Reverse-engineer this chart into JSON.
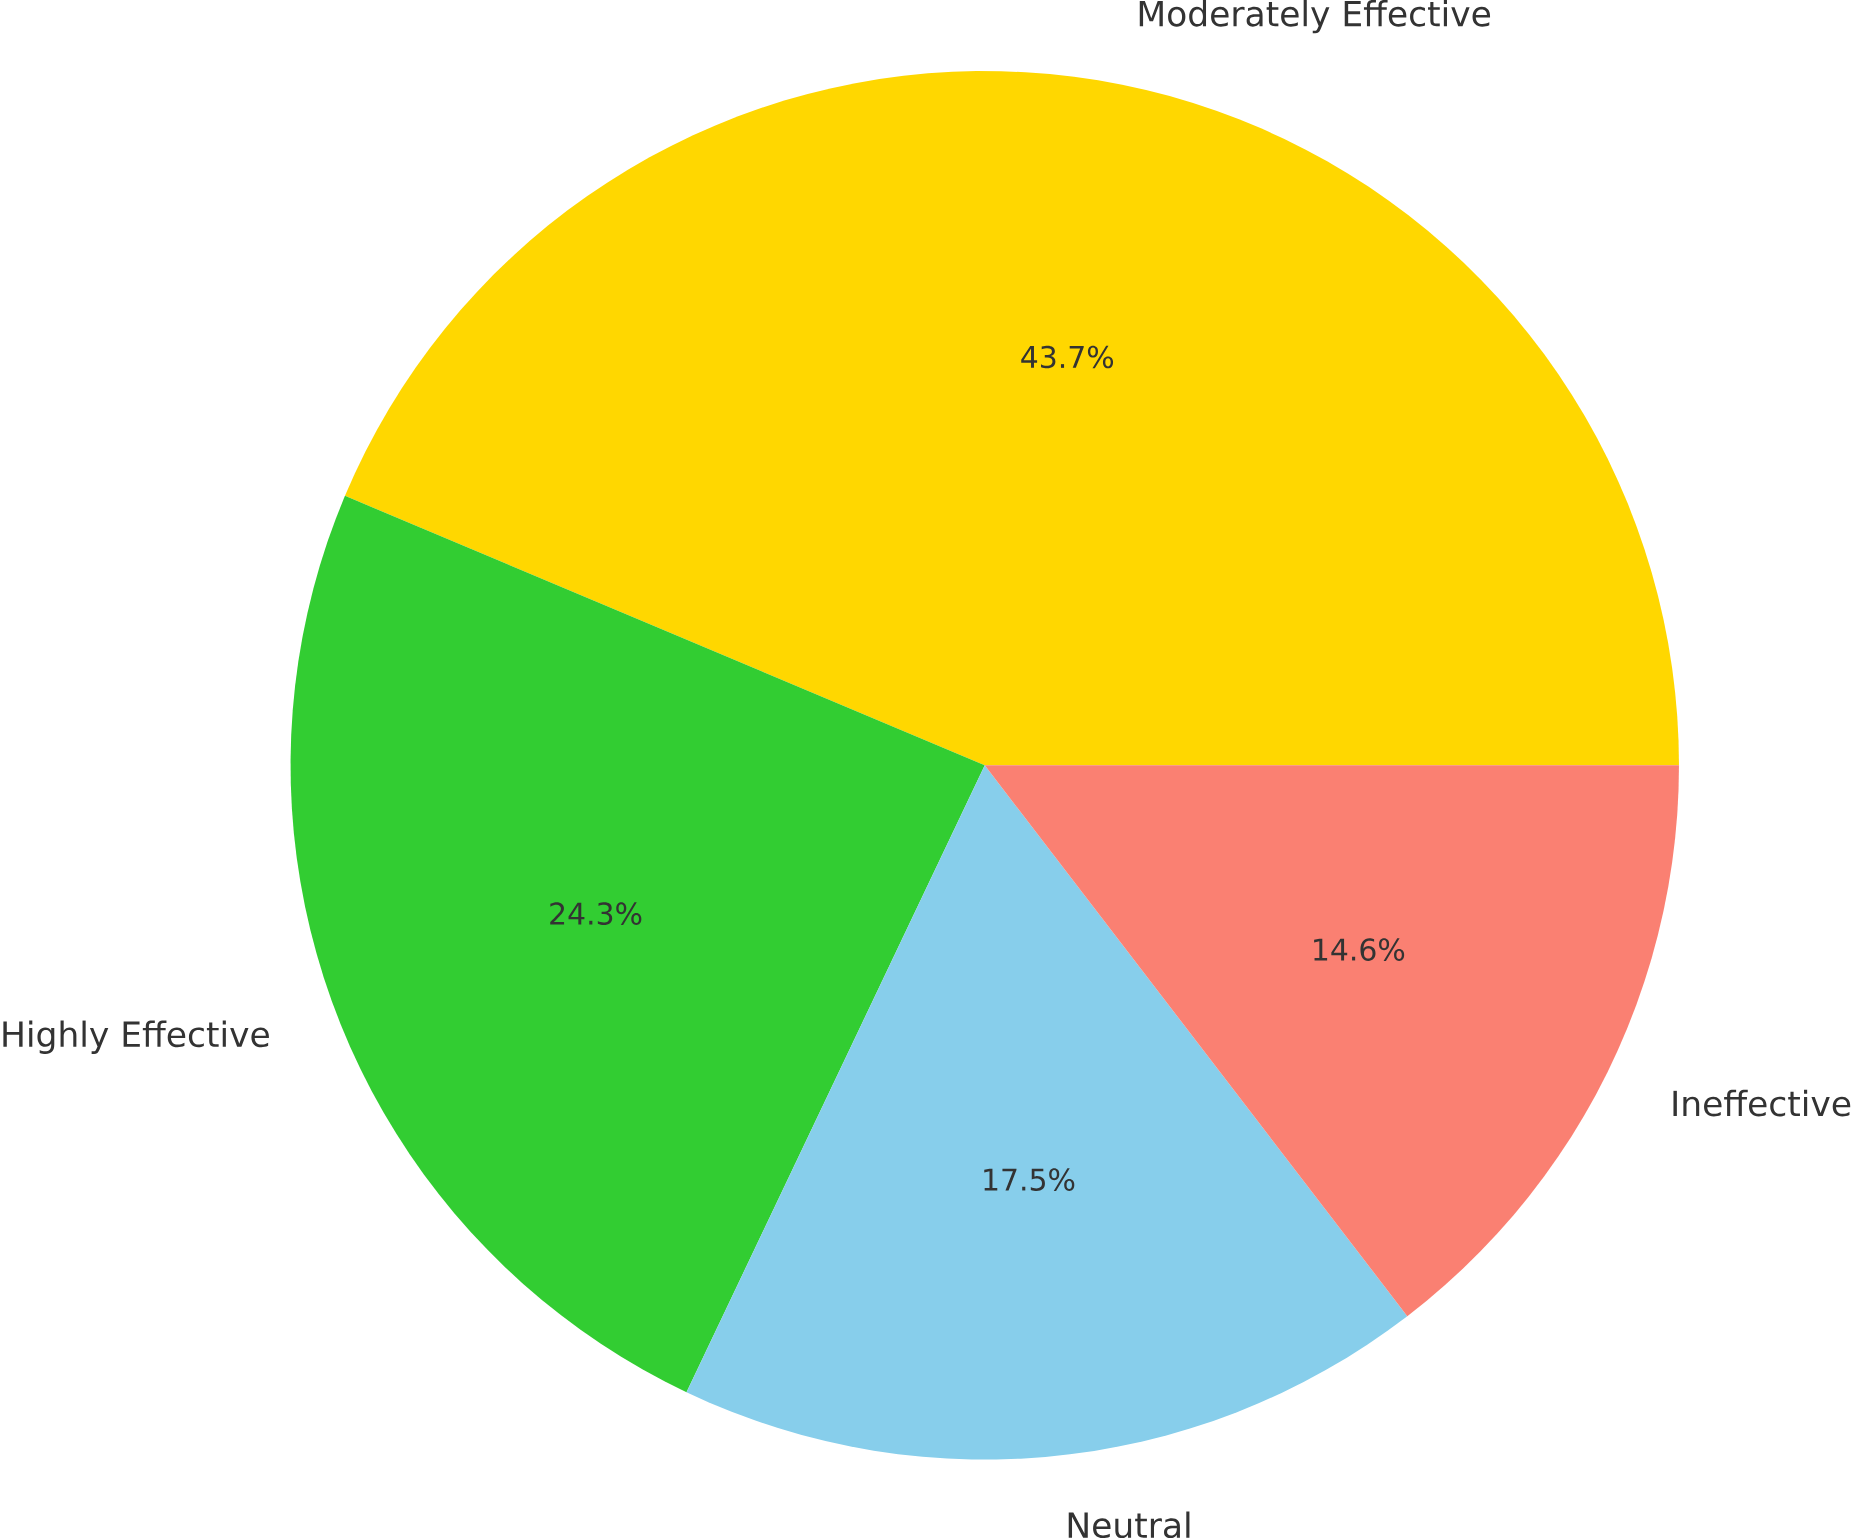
{
  "chart_data": {
    "type": "pie",
    "categories": [
      "Moderately Effective",
      "Highly Effective",
      "Neutral",
      "Ineffective"
    ],
    "values": [
      43.7,
      24.3,
      17.5,
      14.6
    ],
    "colors": [
      "#ffd700",
      "#32cd32",
      "#87ceeb",
      "#fa8072"
    ],
    "value_labels": [
      "43.7%",
      "24.3%",
      "17.5%",
      "14.6%"
    ]
  }
}
